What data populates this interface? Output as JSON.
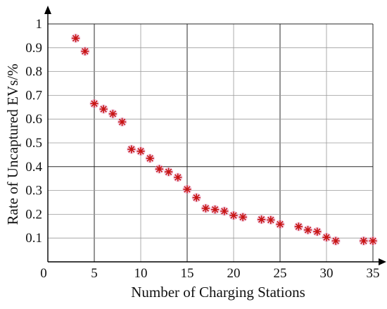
{
  "chart_data": {
    "type": "scatter",
    "title": "",
    "xlabel": "Number of Charging Stations",
    "ylabel": "Rate of Uncaptured EVs/%",
    "xlim": [
      0,
      35
    ],
    "ylim": [
      0,
      1
    ],
    "xticks": [
      "0",
      "5",
      "10",
      "15",
      "20",
      "25",
      "30",
      "35"
    ],
    "yticks": [
      "0.1",
      "0.2",
      "0.3",
      "0.4",
      "0.5",
      "0.6",
      "0.7",
      "0.8",
      "0.9",
      "1"
    ],
    "grid": true,
    "marker": "asterisk",
    "colors": {
      "marker": "#c81414",
      "marker_halo": "#e8a6c8"
    },
    "points": [
      {
        "x": 3,
        "y": 0.94
      },
      {
        "x": 4,
        "y": 0.885
      },
      {
        "x": 5,
        "y": 0.665
      },
      {
        "x": 6,
        "y": 0.642
      },
      {
        "x": 7,
        "y": 0.622
      },
      {
        "x": 8,
        "y": 0.588
      },
      {
        "x": 9,
        "y": 0.473
      },
      {
        "x": 10,
        "y": 0.465
      },
      {
        "x": 11,
        "y": 0.435
      },
      {
        "x": 12,
        "y": 0.39
      },
      {
        "x": 13,
        "y": 0.378
      },
      {
        "x": 14,
        "y": 0.355
      },
      {
        "x": 15,
        "y": 0.305
      },
      {
        "x": 16,
        "y": 0.27
      },
      {
        "x": 17,
        "y": 0.225
      },
      {
        "x": 18,
        "y": 0.22
      },
      {
        "x": 19,
        "y": 0.213
      },
      {
        "x": 20,
        "y": 0.195
      },
      {
        "x": 21,
        "y": 0.188
      },
      {
        "x": 23,
        "y": 0.178
      },
      {
        "x": 24,
        "y": 0.176
      },
      {
        "x": 25,
        "y": 0.158
      },
      {
        "x": 27,
        "y": 0.148
      },
      {
        "x": 28,
        "y": 0.134
      },
      {
        "x": 29,
        "y": 0.127
      },
      {
        "x": 30,
        "y": 0.103
      },
      {
        "x": 31,
        "y": 0.088
      },
      {
        "x": 34,
        "y": 0.088
      },
      {
        "x": 35,
        "y": 0.088
      }
    ]
  }
}
